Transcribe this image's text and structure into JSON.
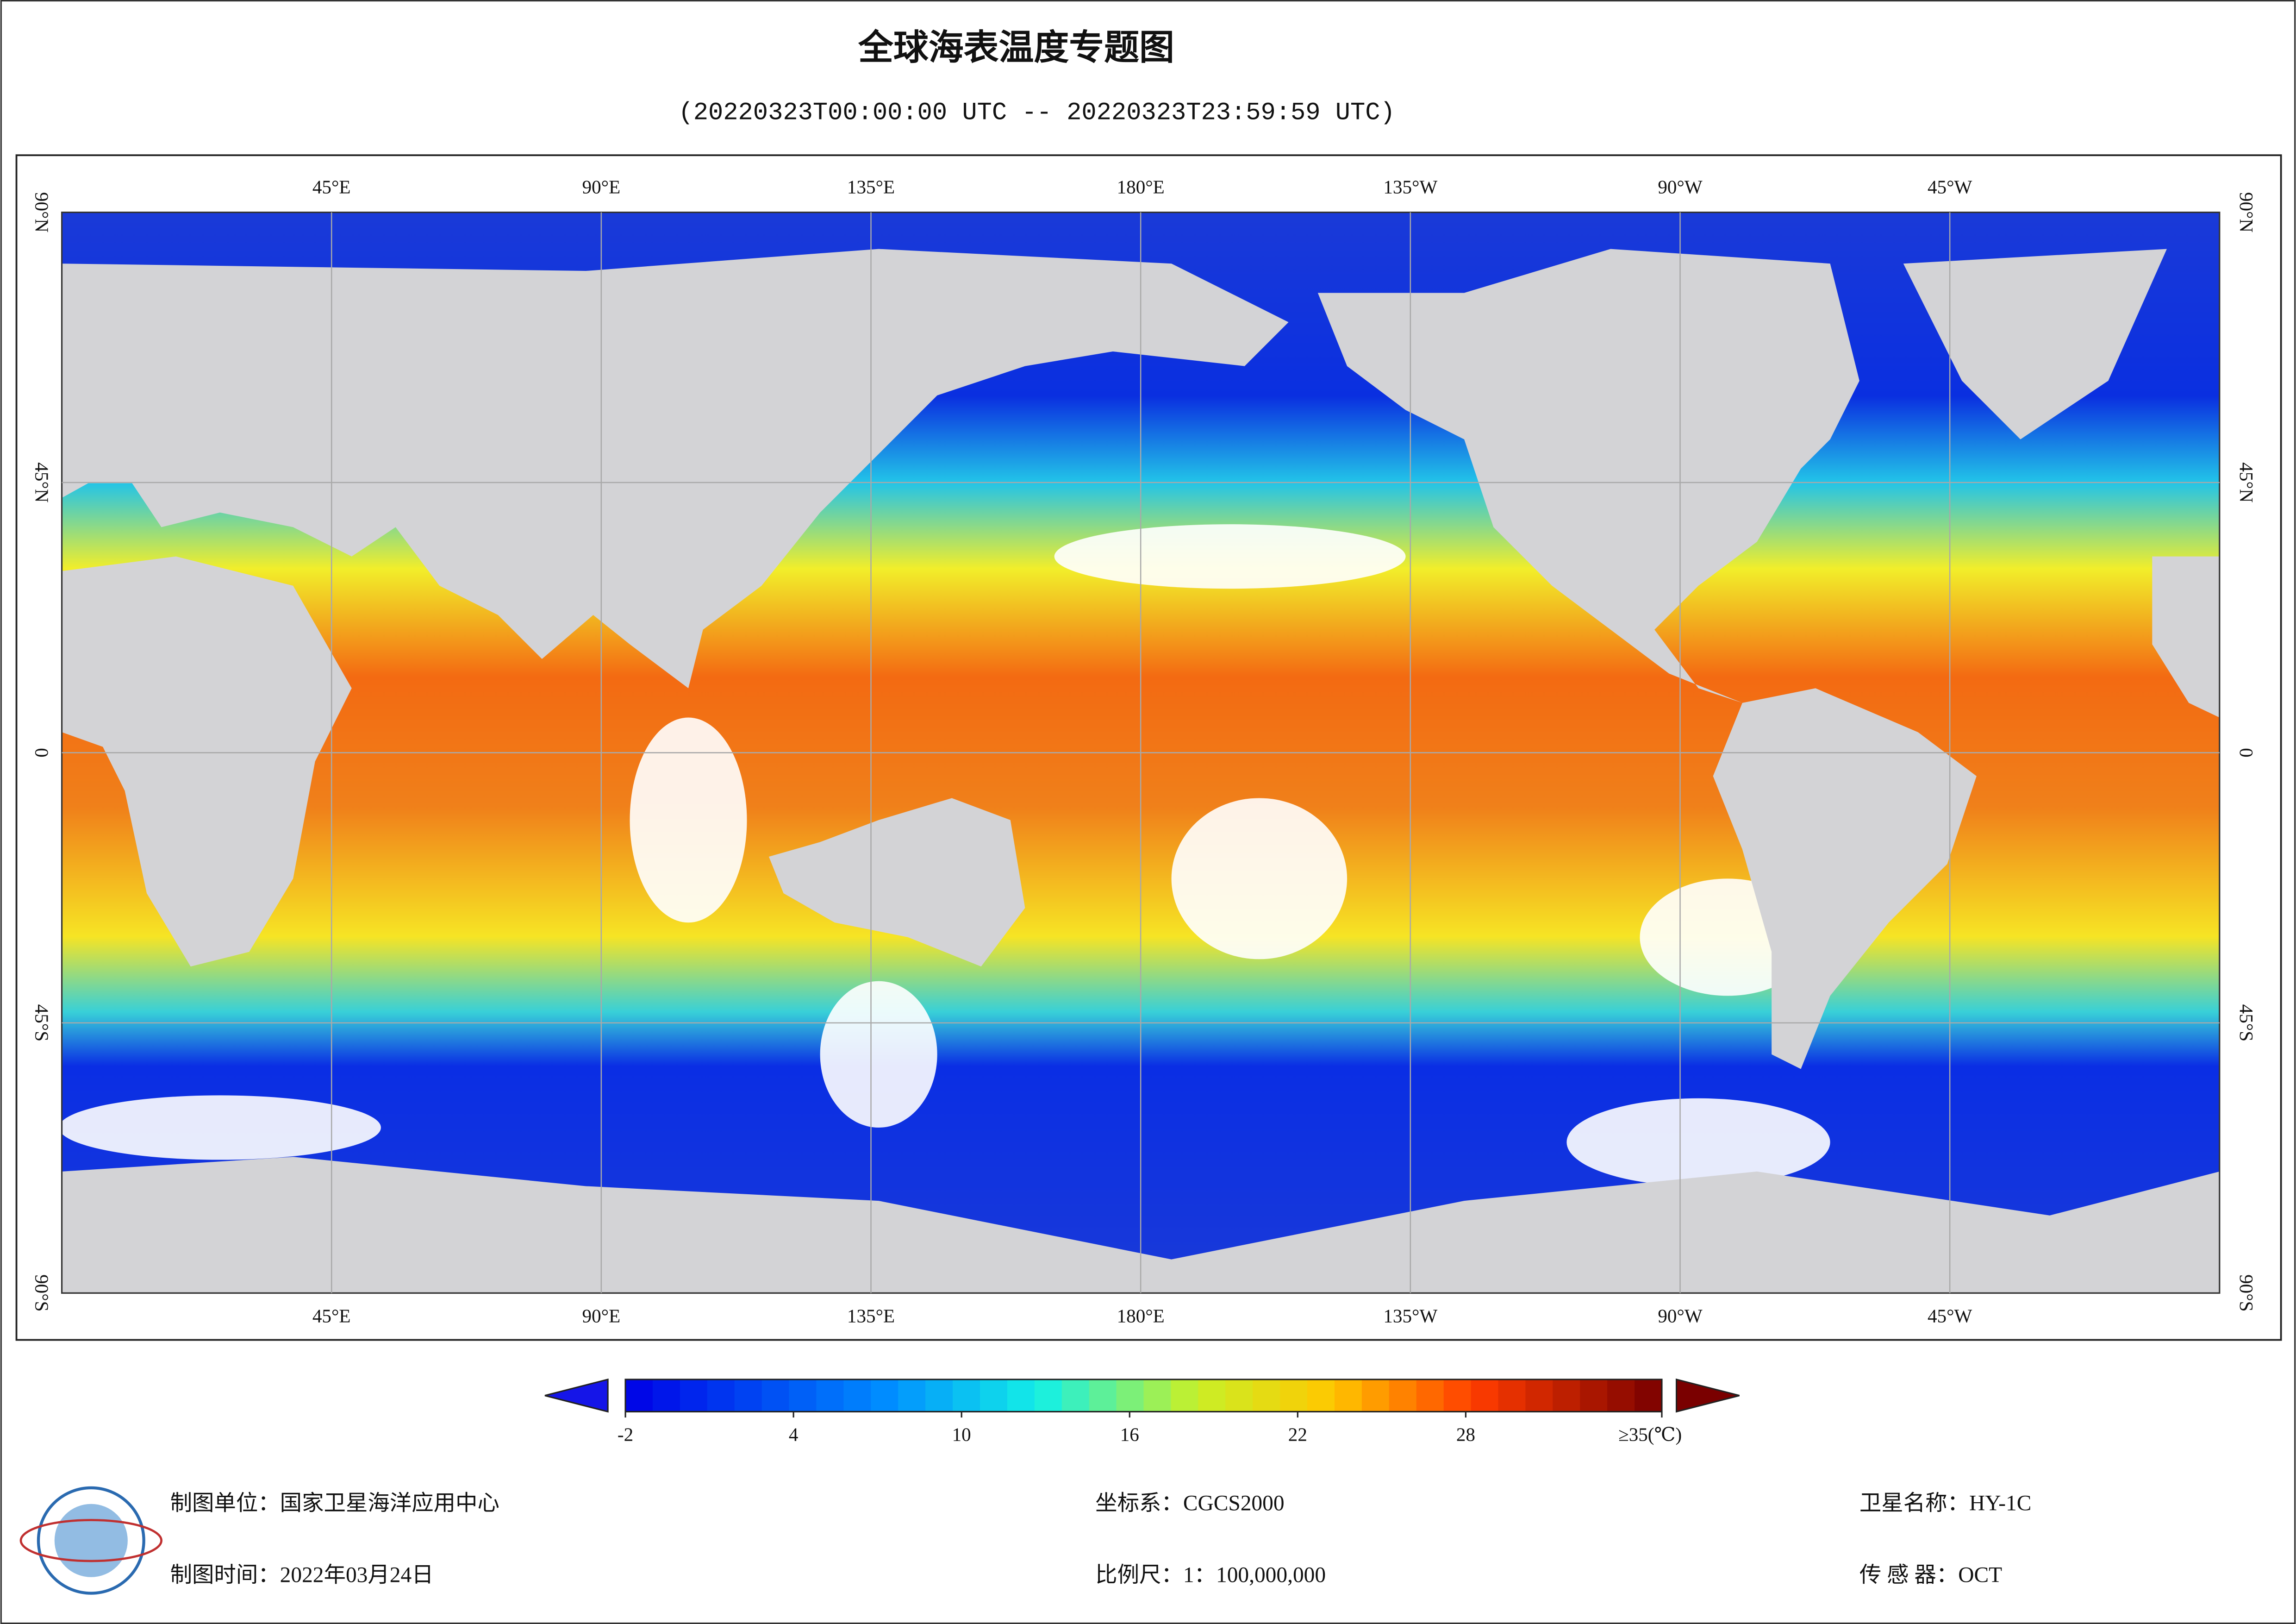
{
  "header": {
    "title": "全球海表温度专题图",
    "subtitle": "(20220323T00:00:00 UTC -- 20220323T23:59:59 UTC)"
  },
  "map": {
    "lon_labels": [
      "45°E",
      "90°E",
      "135°E",
      "180°E",
      "135°W",
      "90°W",
      "45°W"
    ],
    "lat_labels": [
      "90°N",
      "45°N",
      "0",
      "45°S",
      "90°S"
    ]
  },
  "colorbar": {
    "range": [
      -2,
      35
    ],
    "ticks": [
      -2,
      4,
      10,
      16,
      22,
      28,
      {
        "value": 35,
        "label": "≥35(℃)"
      }
    ]
  },
  "footer": {
    "unit": "制图单位：国家卫星海洋应用中心",
    "date": "制图时间：2022年03月24日",
    "crs": "坐标系：CGCS2000",
    "scale": "比例尺：1：100,000,000",
    "satellite": "卫星名称：HY-1C",
    "sensor": "传 感 器：OCT"
  }
}
